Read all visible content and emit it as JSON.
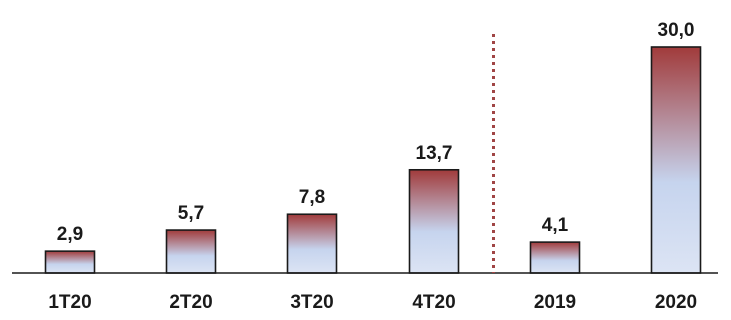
{
  "chart_data": {
    "type": "bar",
    "categories": [
      "1T20",
      "2T20",
      "3T20",
      "4T20",
      "2019",
      "2020"
    ],
    "values": [
      2.9,
      5.7,
      7.8,
      13.7,
      4.1,
      30.0
    ],
    "value_labels": [
      "2,9",
      "5,7",
      "7,8",
      "13,7",
      "4,1",
      "30,0"
    ],
    "title": "",
    "xlabel": "",
    "ylabel": "",
    "ylim": [
      0,
      30.0
    ],
    "grid": false,
    "legend": "none",
    "separator_after_category": "4T20",
    "colors": {
      "bar_top": "#a13b3b",
      "bar_bottom": "#dce4f4",
      "bar_mid": "#c6d4ee",
      "separator": "#a04545"
    }
  }
}
